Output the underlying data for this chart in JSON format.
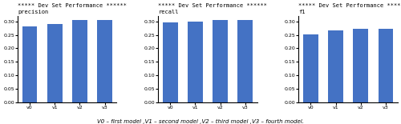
{
  "categories": [
    "v0",
    "v1",
    "v2",
    "v3"
  ],
  "precision_values": [
    0.28,
    0.29,
    0.305,
    0.306
  ],
  "recall_values": [
    0.297,
    0.299,
    0.305,
    0.306
  ],
  "f1_values": [
    0.253,
    0.265,
    0.272,
    0.272
  ],
  "bar_color": "#4472C4",
  "suptitle": "***** Dev Set Performance ******",
  "subtitle1": "precision",
  "subtitle2": "recall",
  "subtitle3": "f1",
  "ylim": [
    0.0,
    0.32
  ],
  "yticks": [
    0.0,
    0.05,
    0.1,
    0.15,
    0.2,
    0.25,
    0.3
  ],
  "xlabel": "V0 – first model ,V1 – second model ,V2 – third model ,V3 – fourth model.",
  "suptitle_fontsize": 5.0,
  "subtitle_fontsize": 5.0,
  "xlabel_fontsize": 5.0,
  "tick_fontsize": 4.5,
  "background_color": "#ffffff"
}
